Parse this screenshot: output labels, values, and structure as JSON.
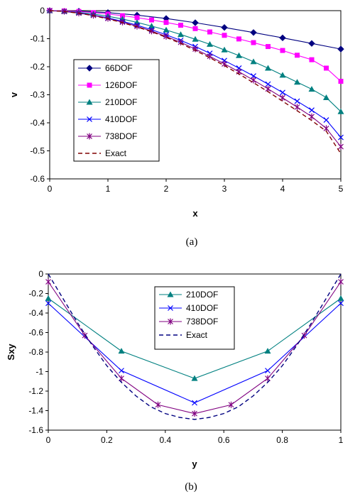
{
  "chart_data": [
    {
      "type": "line",
      "caption": "(a)",
      "xlabel": "x",
      "ylabel": "v",
      "xlim": [
        0,
        5
      ],
      "ylim": [
        -0.6,
        0
      ],
      "xticks": [
        "0",
        "1",
        "2",
        "3",
        "4",
        "5"
      ],
      "yticks": [
        "0",
        "-0.1",
        "-0.2",
        "-0.3",
        "-0.4",
        "-0.5",
        "-0.6"
      ],
      "legend_position": "left-center",
      "grid": false,
      "series": [
        {
          "name": "66DOF",
          "color": "#000080",
          "marker": "diamond",
          "dash": false,
          "x": [
            0,
            0.5,
            1,
            1.5,
            2,
            2.5,
            3,
            3.5,
            4,
            4.5,
            5
          ],
          "y": [
            0,
            -0.002,
            -0.007,
            -0.016,
            -0.028,
            -0.043,
            -0.06,
            -0.078,
            -0.097,
            -0.117,
            -0.137
          ]
        },
        {
          "name": "126DOF",
          "color": "#FF00FF",
          "marker": "square",
          "dash": false,
          "x": [
            0,
            0.25,
            0.5,
            0.75,
            1,
            1.25,
            1.5,
            1.75,
            2,
            2.25,
            2.5,
            2.75,
            3,
            3.25,
            3.5,
            3.75,
            4,
            4.25,
            4.5,
            4.75,
            5
          ],
          "y": [
            0,
            -0.001,
            -0.003,
            -0.007,
            -0.012,
            -0.018,
            -0.025,
            -0.033,
            -0.042,
            -0.052,
            -0.064,
            -0.076,
            -0.088,
            -0.101,
            -0.114,
            -0.128,
            -0.142,
            -0.159,
            -0.175,
            -0.205,
            -0.252
          ]
        },
        {
          "name": "210DOF",
          "color": "#008080",
          "marker": "triangle",
          "dash": false,
          "x": [
            0,
            0.25,
            0.5,
            0.75,
            1,
            1.25,
            1.5,
            1.75,
            2,
            2.25,
            2.5,
            2.75,
            3,
            3.25,
            3.5,
            3.75,
            4,
            4.25,
            4.5,
            4.75,
            5
          ],
          "y": [
            0,
            -0.002,
            -0.006,
            -0.012,
            -0.02,
            -0.03,
            -0.042,
            -0.055,
            -0.069,
            -0.085,
            -0.102,
            -0.12,
            -0.14,
            -0.16,
            -0.182,
            -0.205,
            -0.23,
            -0.255,
            -0.28,
            -0.31,
            -0.36
          ]
        },
        {
          "name": "410DOF",
          "color": "#0000FF",
          "marker": "x",
          "dash": false,
          "x": [
            0,
            0.25,
            0.5,
            0.75,
            1,
            1.25,
            1.5,
            1.75,
            2,
            2.25,
            2.5,
            2.75,
            3,
            3.25,
            3.5,
            3.75,
            4,
            4.25,
            4.5,
            4.75,
            5
          ],
          "y": [
            0,
            -0.003,
            -0.008,
            -0.016,
            -0.026,
            -0.038,
            -0.052,
            -0.068,
            -0.086,
            -0.106,
            -0.128,
            -0.152,
            -0.178,
            -0.205,
            -0.233,
            -0.262,
            -0.292,
            -0.323,
            -0.355,
            -0.39,
            -0.452
          ]
        },
        {
          "name": "738DOF",
          "color": "#800080",
          "marker": "star",
          "dash": false,
          "x": [
            0,
            0.25,
            0.5,
            0.75,
            1,
            1.25,
            1.5,
            1.75,
            2,
            2.25,
            2.5,
            2.75,
            3,
            3.25,
            3.5,
            3.75,
            4,
            4.25,
            4.5,
            4.75,
            5
          ],
          "y": [
            0,
            -0.003,
            -0.009,
            -0.017,
            -0.028,
            -0.041,
            -0.056,
            -0.073,
            -0.092,
            -0.113,
            -0.137,
            -0.163,
            -0.19,
            -0.218,
            -0.248,
            -0.279,
            -0.311,
            -0.344,
            -0.378,
            -0.42,
            -0.485
          ]
        },
        {
          "name": "Exact",
          "color": "#800000",
          "marker": "none",
          "dash": true,
          "x": [
            0,
            0.25,
            0.5,
            0.75,
            1,
            1.25,
            1.5,
            1.75,
            2,
            2.25,
            2.5,
            2.75,
            3,
            3.25,
            3.5,
            3.75,
            4,
            4.25,
            4.5,
            4.75,
            5
          ],
          "y": [
            0,
            -0.003,
            -0.009,
            -0.018,
            -0.029,
            -0.043,
            -0.058,
            -0.075,
            -0.095,
            -0.117,
            -0.142,
            -0.168,
            -0.196,
            -0.226,
            -0.257,
            -0.289,
            -0.323,
            -0.357,
            -0.392,
            -0.43,
            -0.51
          ]
        }
      ]
    },
    {
      "type": "line",
      "caption": "(b)",
      "xlabel": "y",
      "ylabel": "Sxy",
      "xlim": [
        0,
        1
      ],
      "ylim": [
        -1.6,
        0
      ],
      "xticks": [
        "0",
        "0.2",
        "0.4",
        "0.6",
        "0.8",
        "1"
      ],
      "yticks": [
        "0",
        "-0.2",
        "-0.4",
        "-0.6",
        "-0.8",
        "-1",
        "-1.2",
        "-1.4",
        "-1.6"
      ],
      "legend_position": "top-center",
      "grid": false,
      "series": [
        {
          "name": "210DOF",
          "color": "#008080",
          "marker": "triangle",
          "dash": false,
          "x": [
            0,
            0.25,
            0.5,
            0.75,
            1
          ],
          "y": [
            -0.25,
            -0.79,
            -1.07,
            -0.79,
            -0.25
          ]
        },
        {
          "name": "410DOF",
          "color": "#0000FF",
          "marker": "x",
          "dash": false,
          "x": [
            0,
            0.25,
            0.5,
            0.75,
            1
          ],
          "y": [
            -0.3,
            -0.99,
            -1.32,
            -0.99,
            -0.3
          ]
        },
        {
          "name": "738DOF",
          "color": "#800080",
          "marker": "star",
          "dash": false,
          "x": [
            0,
            0.125,
            0.25,
            0.375,
            0.5,
            0.625,
            0.75,
            0.875,
            1
          ],
          "y": [
            -0.08,
            -0.63,
            -1.07,
            -1.34,
            -1.43,
            -1.34,
            -1.07,
            -0.63,
            -0.08
          ]
        },
        {
          "name": "Exact",
          "color": "#000080",
          "marker": "none",
          "dash": true,
          "x": [
            0,
            0.05,
            0.1,
            0.15,
            0.2,
            0.25,
            0.3,
            0.35,
            0.4,
            0.45,
            0.5,
            0.55,
            0.6,
            0.65,
            0.7,
            0.75,
            0.8,
            0.85,
            0.9,
            0.95,
            1
          ],
          "y": [
            0,
            -0.25,
            -0.5,
            -0.73,
            -0.94,
            -1.11,
            -1.25,
            -1.36,
            -1.43,
            -1.47,
            -1.49,
            -1.47,
            -1.43,
            -1.36,
            -1.25,
            -1.11,
            -0.94,
            -0.73,
            -0.5,
            -0.25,
            0
          ]
        }
      ]
    }
  ]
}
